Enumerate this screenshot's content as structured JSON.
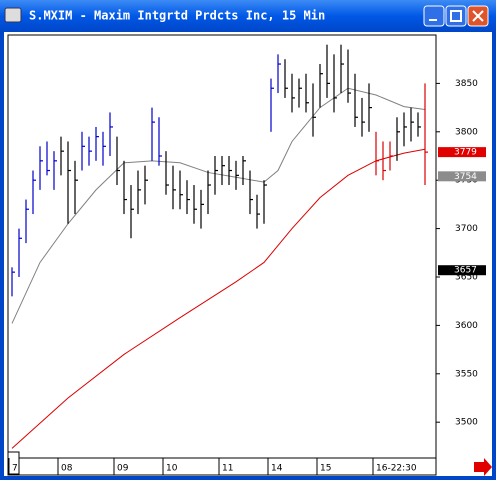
{
  "chart_data": {
    "type": "hlc",
    "title": "S.MXIM - Maxim Intgrtd Prdcts Inc, 15 Min",
    "categories": [
      "7",
      null,
      null,
      null,
      null,
      null,
      null,
      "08",
      null,
      null,
      null,
      null,
      null,
      null,
      null,
      "09",
      null,
      null,
      null,
      null,
      null,
      null,
      "10",
      null,
      null,
      null,
      null,
      null,
      null,
      null,
      "11",
      null,
      null,
      null,
      null,
      null,
      null,
      "14",
      null,
      null,
      null,
      null,
      null,
      null,
      "15",
      null,
      null,
      null,
      null,
      null,
      null,
      null,
      "16-22:30",
      null,
      null,
      null,
      null,
      null,
      null,
      null
    ],
    "high": [
      3660,
      3700,
      3730,
      3760,
      3785,
      3790,
      3780,
      3795,
      3790,
      3770,
      3800,
      3795,
      3805,
      3800,
      3820,
      3795,
      3770,
      3745,
      3760,
      3765,
      3825,
      3815,
      3780,
      3765,
      3760,
      3750,
      3745,
      3740,
      3760,
      3775,
      3775,
      3775,
      3770,
      3775,
      3760,
      3735,
      3750,
      3855,
      3880,
      3875,
      3860,
      3855,
      3860,
      3850,
      3870,
      3890,
      3880,
      3890,
      3885,
      3860,
      3835,
      3850,
      3800,
      3790,
      3790,
      3815,
      3820,
      3825,
      3820,
      3850
    ],
    "low": [
      3630,
      3650,
      3685,
      3715,
      3740,
      3755,
      3740,
      3755,
      3705,
      3715,
      3760,
      3765,
      3770,
      3765,
      3775,
      3745,
      3715,
      3690,
      3715,
      3725,
      3770,
      3765,
      3735,
      3720,
      3720,
      3715,
      3705,
      3700,
      3715,
      3735,
      3745,
      3745,
      3740,
      3745,
      3715,
      3700,
      3705,
      3800,
      3840,
      3835,
      3820,
      3825,
      3820,
      3795,
      3825,
      3835,
      3820,
      3840,
      3830,
      3805,
      3795,
      3800,
      3755,
      3750,
      3760,
      3770,
      3785,
      3790,
      3795,
      3745
    ],
    "close": [
      3655,
      3690,
      3720,
      3750,
      3770,
      3760,
      3770,
      3780,
      3760,
      3750,
      3785,
      3780,
      3795,
      3785,
      3805,
      3760,
      3730,
      3720,
      3740,
      3750,
      3810,
      3775,
      3745,
      3740,
      3735,
      3730,
      3720,
      3725,
      3745,
      3760,
      3765,
      3760,
      3755,
      3770,
      3730,
      3715,
      3745,
      3845,
      3870,
      3845,
      3835,
      3845,
      3830,
      3815,
      3860,
      3850,
      3835,
      3870,
      3840,
      3815,
      3810,
      3825,
      3770,
      3760,
      3775,
      3800,
      3805,
      3810,
      3805,
      3779
    ],
    "bar_colors": [
      "#0000cc",
      "#0000cc",
      "#0000cc",
      "#0000cc",
      "#0000cc",
      "#0000cc",
      "#0000cc",
      "#000000",
      "#000000",
      "#000000",
      "#0000cc",
      "#0000cc",
      "#0000cc",
      "#0000cc",
      "#0000cc",
      "#000000",
      "#000000",
      "#000000",
      "#000000",
      "#000000",
      "#0000cc",
      "#0000cc",
      "#000000",
      "#000000",
      "#000000",
      "#000000",
      "#000000",
      "#000000",
      "#000000",
      "#000000",
      "#000000",
      "#000000",
      "#000000",
      "#000000",
      "#000000",
      "#000000",
      "#000000",
      "#0000cc",
      "#0000cc",
      "#000000",
      "#000000",
      "#000000",
      "#000000",
      "#000000",
      "#000000",
      "#000000",
      "#000000",
      "#000000",
      "#000000",
      "#000000",
      "#000000",
      "#000000",
      "#dd0000",
      "#dd0000",
      "#dd0000",
      "#000000",
      "#000000",
      "#000000",
      "#000000",
      "#dd0000"
    ],
    "moving_averages": [
      {
        "color": "#808080",
        "x": [
          0,
          4,
          8,
          12,
          16,
          20,
          24,
          28,
          32,
          36,
          38,
          40,
          44,
          48,
          52,
          56,
          59
        ],
        "values": [
          3602,
          3665,
          3705,
          3740,
          3768,
          3770,
          3768,
          3758,
          3753,
          3748,
          3760,
          3790,
          3825,
          3845,
          3838,
          3826,
          3823
        ]
      },
      {
        "color": "#dd0000",
        "x": [
          0,
          8,
          16,
          24,
          32,
          36,
          40,
          44,
          48,
          52,
          56,
          59
        ],
        "values": [
          3473,
          3525,
          3570,
          3608,
          3645,
          3665,
          3700,
          3732,
          3755,
          3770,
          3778,
          3782
        ]
      }
    ],
    "price_labels": [
      {
        "value": 3779,
        "color": "#e00000"
      },
      {
        "value": 3754,
        "color": "#8c8c8c"
      },
      {
        "value": 3657,
        "color": "#000000"
      }
    ],
    "ylim": [
      3463,
      3900
    ],
    "yticks": [
      3500,
      3550,
      3600,
      3650,
      3700,
      3750,
      3800,
      3850
    ]
  }
}
